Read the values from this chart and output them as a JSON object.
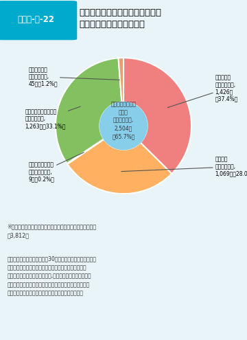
{
  "title": "平成３０年度までに新制度に移行\nする私立幼稚園の施設類型",
  "figure_label": "図表２-４-22",
  "segments": [
    {
      "label": "幼保連携型\n認定こども園,\n1,426園\n（37.4%）",
      "value": 37.4,
      "color": "#F08080"
    },
    {
      "label": "幼稚園型\n認定こども園,\n1,069園（28.0%）",
      "value": 28.0,
      "color": "#FFB347"
    },
    {
      "label": "「認定こども園」\nの類型は検討中,\n9園（0.2%）",
      "value": 0.2,
      "color": "#F08080"
    },
    {
      "label": "「私立幼稚園」のまま\n新制度に移行,\n1,263園（33.1%）",
      "value": 33.1,
      "color": "#90C060"
    },
    {
      "label": "どちらで移行\nするか検討中,\n45園（1.2%）",
      "value": 1.2,
      "color": "#F4A460"
    },
    {
      "label": "「認定こども園」\nとして\n新制度に移行,\n2,504園\n（65.7%）",
      "value": 65.7,
      "color": "#87CEEB"
    }
  ],
  "note1": "※令和元年度に新制度に移行する（予定を含む）私立幼稚園\n　3,812園",
  "note2": "（出典）　文部科学省「平成30年度における私立幼稚園の子\n　　　　ども・子育て支援新制度への円滑な移行に係る\n　　　　フォローアップ調査」,「令和元年度における私立\n　　　　幼稚園の子ども・子育て支援新制度への移行に関\n　　　　する意向調査」の結果を基に文部科学省作成",
  "background_color": "#E8F4F8",
  "header_color": "#00AACC",
  "header_text_color": "#FFFFFF"
}
